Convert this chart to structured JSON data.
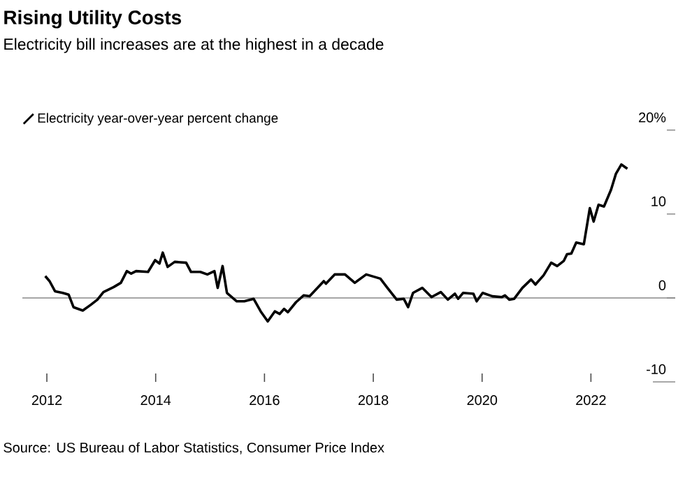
{
  "chart_data": {
    "type": "line",
    "title": "Rising Utility Costs",
    "subtitle": "Electricity bill increases are at the highest in a decade",
    "annotations": [
      "Source: US Bureau of Labor Statistics, Consumer Price Index"
    ],
    "series": [
      {
        "name": "Electricity year-over-year percent change",
        "color": "#000000",
        "x": [
          2011.97,
          2012.05,
          2012.15,
          2012.29,
          2012.4,
          2012.49,
          2012.66,
          2012.81,
          2012.93,
          2013.04,
          2013.23,
          2013.36,
          2013.47,
          2013.55,
          2013.64,
          2013.86,
          2013.99,
          2014.07,
          2014.13,
          2014.22,
          2014.35,
          2014.56,
          2014.65,
          2014.82,
          2014.95,
          2015.08,
          2015.14,
          2015.23,
          2015.31,
          2015.49,
          2015.63,
          2015.8,
          2015.93,
          2016.06,
          2016.19,
          2016.28,
          2016.36,
          2016.43,
          2016.58,
          2016.72,
          2016.83,
          2017.09,
          2017.13,
          2017.29,
          2017.48,
          2017.66,
          2017.87,
          2018.13,
          2018.26,
          2018.43,
          2018.56,
          2018.64,
          2018.73,
          2018.9,
          2019.07,
          2019.24,
          2019.37,
          2019.5,
          2019.56,
          2019.65,
          2019.84,
          2019.9,
          2020.01,
          2020.19,
          2020.36,
          2020.42,
          2020.5,
          2020.59,
          2020.74,
          2020.9,
          2020.98,
          2021.13,
          2021.27,
          2021.38,
          2021.5,
          2021.56,
          2021.64,
          2021.73,
          2021.87,
          2021.98,
          2022.05,
          2022.14,
          2022.24,
          2022.37,
          2022.46,
          2022.56,
          2022.67
        ],
        "values": [
          2.6,
          2.0,
          0.8,
          0.6,
          0.4,
          -1.1,
          -1.5,
          -0.8,
          -0.2,
          0.7,
          1.3,
          1.8,
          3.2,
          2.9,
          3.2,
          3.1,
          4.5,
          4.1,
          5.4,
          3.7,
          4.3,
          4.2,
          3.1,
          3.1,
          2.8,
          3.2,
          1.2,
          3.8,
          0.6,
          -0.4,
          -0.4,
          -0.1,
          -1.6,
          -2.8,
          -1.6,
          -1.9,
          -1.3,
          -1.7,
          -0.5,
          0.3,
          0.2,
          2.0,
          1.7,
          2.8,
          2.8,
          1.8,
          2.8,
          2.3,
          1.2,
          -0.2,
          -0.1,
          -1.1,
          0.6,
          1.2,
          0.1,
          0.7,
          -0.2,
          0.5,
          -0.1,
          0.6,
          0.5,
          -0.4,
          0.6,
          0.2,
          0.1,
          0.3,
          -0.2,
          -0.1,
          1.2,
          2.2,
          1.6,
          2.7,
          4.2,
          3.8,
          4.4,
          5.2,
          5.3,
          6.6,
          6.4,
          10.7,
          9.1,
          11.1,
          10.9,
          12.9,
          14.8,
          15.9,
          15.4
        ]
      }
    ],
    "xlim": [
      2011.55,
      2023.55
    ],
    "xticks": [
      2012,
      2014,
      2016,
      2018,
      2020,
      2022
    ],
    "ylim": [
      -10,
      20
    ],
    "yticks": [
      {
        "value": 20,
        "label": "20%"
      },
      10,
      0,
      -10
    ],
    "ref_lines": [
      {
        "axis": "y",
        "value": 0,
        "color": "#888888"
      }
    ],
    "grid": false,
    "legend": "top left",
    "marker": "none",
    "line_style": "solid"
  }
}
